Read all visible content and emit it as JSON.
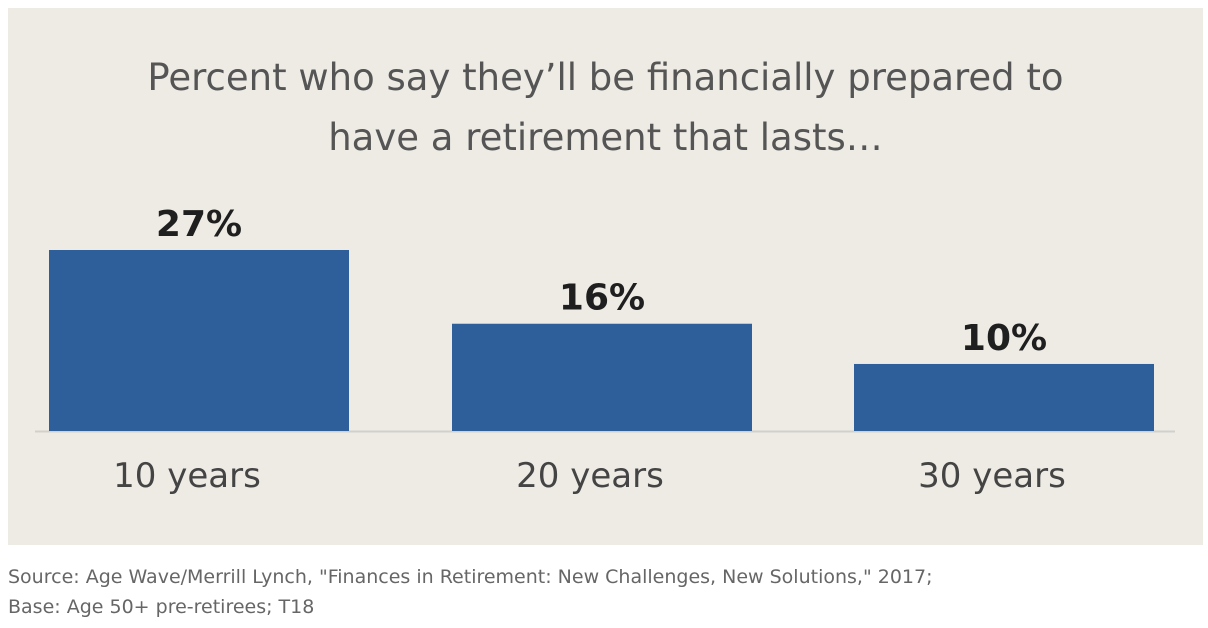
{
  "chart_data": {
    "type": "bar",
    "title": [
      "Percent who say they’ll be financially prepared to",
      "have a retirement that lasts…"
    ],
    "categories": [
      "10 years",
      "20 years",
      "30 years"
    ],
    "values": [
      27,
      16,
      10
    ],
    "value_labels": [
      "27%",
      "16%",
      "10%"
    ],
    "ylim": [
      0,
      27
    ],
    "grid": false,
    "legend": "none",
    "colors": {
      "bar": "#2f5f9a",
      "background": "#eeebe5",
      "baseline": "#d3d0cb",
      "value_label": "#1f1f1f",
      "category_label": "#444444",
      "title": "#555555"
    }
  },
  "source": {
    "line1": "Source: Age Wave/Merrill Lynch, \"Finances in Retirement: New Challenges, New Solutions,\" 2017;",
    "line2": "Base: Age 50+ pre-retirees; T18"
  }
}
